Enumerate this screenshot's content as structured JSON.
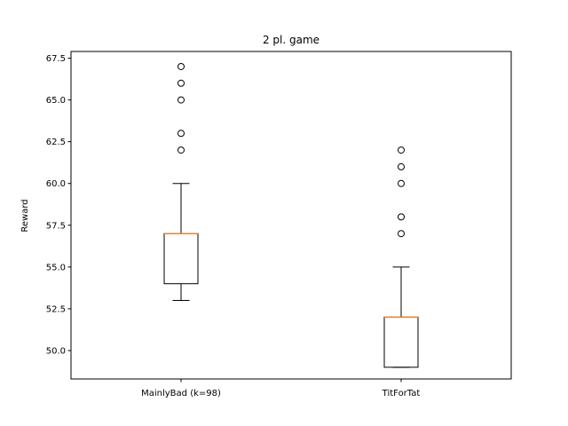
{
  "chart_data": {
    "type": "box",
    "title": "2 pl. game",
    "xlabel": "",
    "ylabel": "Reward",
    "ylim": [
      48.3,
      67.9
    ],
    "yticks": [
      50.0,
      52.5,
      55.0,
      57.5,
      60.0,
      62.5,
      65.0,
      67.5
    ],
    "ytick_labels": [
      "50.0",
      "52.5",
      "55.0",
      "57.5",
      "60.0",
      "62.5",
      "65.0",
      "67.5"
    ],
    "grid": false,
    "categories": [
      "MainlyBad (k=98)",
      "TitForTat"
    ],
    "series": [
      {
        "category": "MainlyBad (k=98)",
        "whisker_low": 53,
        "q1": 54,
        "median": 57,
        "q3": 57,
        "whisker_high": 60,
        "outliers": [
          62,
          63,
          65,
          66,
          67
        ]
      },
      {
        "category": "TitForTat",
        "whisker_low": 49,
        "q1": 49,
        "median": 52,
        "q3": 52,
        "whisker_high": 55,
        "outliers": [
          57,
          58,
          60,
          61,
          62
        ]
      }
    ],
    "colors": {
      "box": "#000000",
      "median": "#ff7f0e",
      "outlier": "#000000"
    }
  }
}
